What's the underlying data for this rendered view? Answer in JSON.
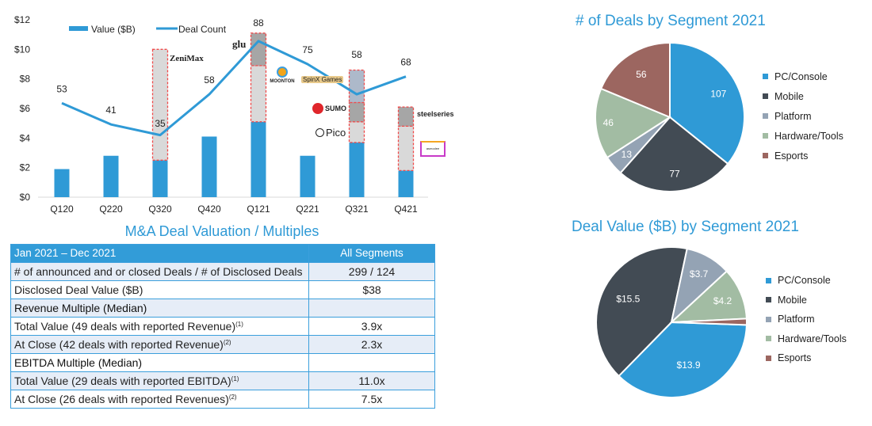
{
  "chart_data": [
    {
      "type": "bar",
      "title": "",
      "xlabel": "",
      "ylabel": "",
      "ylim": [
        0,
        12
      ],
      "y_ticks": [
        "$0",
        "$2",
        "$4",
        "$6",
        "$8",
        "$10",
        "$12"
      ],
      "y_tick_values": [
        0,
        2,
        4,
        6,
        8,
        10,
        12
      ],
      "categories": [
        "Q120",
        "Q220",
        "Q320",
        "Q420",
        "Q121",
        "Q221",
        "Q321",
        "Q421"
      ],
      "legend_position": "top-left",
      "series": [
        {
          "name": "Value ($B)",
          "type": "bar",
          "color": "#2f9ad6",
          "values": [
            1.9,
            2.8,
            2.5,
            4.1,
            5.1,
            2.8,
            3.7,
            1.8
          ]
        },
        {
          "name": "Deal Count",
          "type": "line",
          "color": "#2f9ad6",
          "secondary_axis_max": 100,
          "values": [
            53,
            41,
            35,
            58,
            88,
            75,
            58,
            68
          ]
        }
      ],
      "highlighted_deal_segments": [
        {
          "category": "Q320",
          "from": 2.5,
          "to": 10.0,
          "fill": "#d9d9d9"
        },
        {
          "category": "Q121",
          "from": 5.1,
          "to": 8.9,
          "fill": "#d9d9d9"
        },
        {
          "category": "Q121",
          "from": 8.9,
          "to": 11.1,
          "fill": "#a6a6a6"
        },
        {
          "category": "Q321",
          "from": 3.7,
          "to": 5.1,
          "fill": "#d9d9d9"
        },
        {
          "category": "Q321",
          "from": 5.1,
          "to": 6.4,
          "fill": "#a6a6a6"
        },
        {
          "category": "Q321",
          "from": 6.4,
          "to": 8.6,
          "fill": "#adb9ca"
        },
        {
          "category": "Q421",
          "from": 1.8,
          "to": 4.8,
          "fill": "#d9d9d9"
        },
        {
          "category": "Q421",
          "from": 4.8,
          "to": 6.1,
          "fill": "#a6a6a6"
        }
      ],
      "segment_border_color": "#f04a4a",
      "annotations": [
        "ZeniMax",
        "glu",
        "MOONTON",
        "SpinX Games",
        "SUMO",
        "Pico",
        "steelseries",
        "asmodee"
      ]
    },
    {
      "type": "pie",
      "title": "# of Deals by Segment 2021",
      "legend_position": "right",
      "slices": [
        {
          "label": "PC/Console",
          "value": 107,
          "display": "107",
          "color": "#2f9ad6"
        },
        {
          "label": "Mobile",
          "value": 77,
          "display": "77",
          "color": "#424b54"
        },
        {
          "label": "Platform",
          "value": 13,
          "display": "13",
          "color": "#94a3b4"
        },
        {
          "label": "Hardware/Tools",
          "value": 46,
          "display": "46",
          "color": "#a2bca3"
        },
        {
          "label": "Esports",
          "value": 56,
          "display": "56",
          "color": "#9c6660"
        }
      ]
    },
    {
      "type": "pie",
      "title": "Deal Value ($B) by Segment 2021",
      "legend_position": "right",
      "slices": [
        {
          "label": "PC/Console",
          "value": 13.9,
          "display": "$13.9",
          "color": "#2f9ad6"
        },
        {
          "label": "Mobile",
          "value": 15.5,
          "display": "$15.5",
          "color": "#424b54"
        },
        {
          "label": "Platform",
          "value": 3.7,
          "display": "$3.7",
          "color": "#94a3b4"
        },
        {
          "label": "Hardware/Tools",
          "value": 4.2,
          "display": "$4.2",
          "color": "#a2bca3"
        },
        {
          "label": "Esports",
          "value": 0.5,
          "display": "",
          "color": "#9c6660"
        }
      ]
    }
  ],
  "logos": {
    "zenimax": "ZeniMax",
    "glu": "glu",
    "moonton": "MOONTON",
    "spinx": "SpinX Games",
    "sumo": "SUMO",
    "pico": "Pico",
    "steelseries": "steelseries",
    "asmodee": "asmodee"
  },
  "table": {
    "title": "M&A Deal Valuation / Multiples",
    "header": {
      "period": "Jan 2021 – Dec 2021",
      "column": "All Segments"
    },
    "rows": [
      {
        "label": "# of announced and or closed Deals / # of Disclosed Deals",
        "note": "",
        "value": "299 / 124"
      },
      {
        "label": "Disclosed Deal Value ($B)",
        "note": "",
        "value": "$38"
      },
      {
        "label": "Revenue Multiple (Median)",
        "note": "",
        "value": ""
      },
      {
        "label": "Total Value (49 deals with reported Revenue)",
        "note": "(1)",
        "value": "3.9x"
      },
      {
        "label": "At Close (42 deals with reported Revenue)",
        "note": "(2)",
        "value": "2.3x"
      },
      {
        "label": "EBITDA Multiple (Median)",
        "note": "",
        "value": ""
      },
      {
        "label": "Total Value (29 deals with reported EBITDA)",
        "note": "(1)",
        "value": "11.0x"
      },
      {
        "label": "At Close (26 deals with reported Revenues)",
        "note": "(2)",
        "value": "7.5x"
      }
    ]
  }
}
